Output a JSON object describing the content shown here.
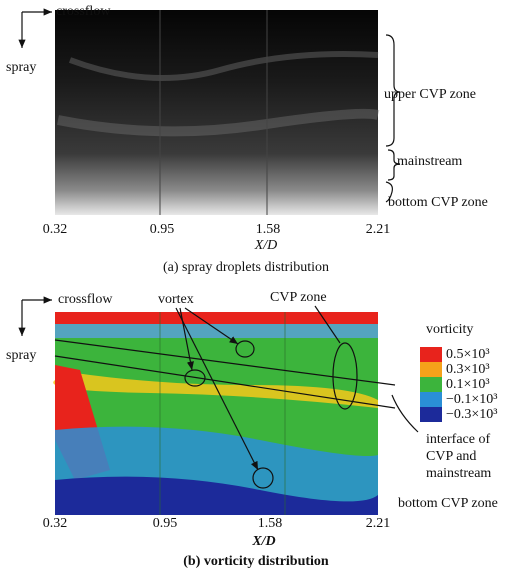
{
  "panel_a": {
    "crossflow": "crossflow",
    "spray": "spray",
    "zones": [
      "upper CVP zone",
      "mainstream",
      "bottom CVP zone"
    ],
    "x_ticks": [
      "0.32",
      "0.95",
      "1.58",
      "2.21"
    ],
    "x_label": "X/D",
    "caption": "(a) spray droplets distribution"
  },
  "panel_b": {
    "crossflow": "crossflow",
    "spray": "spray",
    "vortex": "vortex",
    "cvp_zone": "CVP zone",
    "legend": {
      "title": "vorticity",
      "items": [
        {
          "label": "0.5×10³",
          "color": "#e8231c"
        },
        {
          "label": "0.3×10³",
          "color": "#f5a21a"
        },
        {
          "label": "0.1×10³",
          "color": "#3cb43c"
        },
        {
          "label": "−0.1×10³",
          "color": "#2a8fd6"
        },
        {
          "label": "−0.3×10³",
          "color": "#1c2a9a"
        }
      ]
    },
    "interface": [
      "interface of",
      "CVP and",
      "mainstream"
    ],
    "bottom_zone": "bottom CVP zone",
    "x_ticks": [
      "0.32",
      "0.95",
      "1.58",
      "2.21"
    ],
    "x_label": "X/D",
    "caption": "(b) vorticity distribution"
  }
}
